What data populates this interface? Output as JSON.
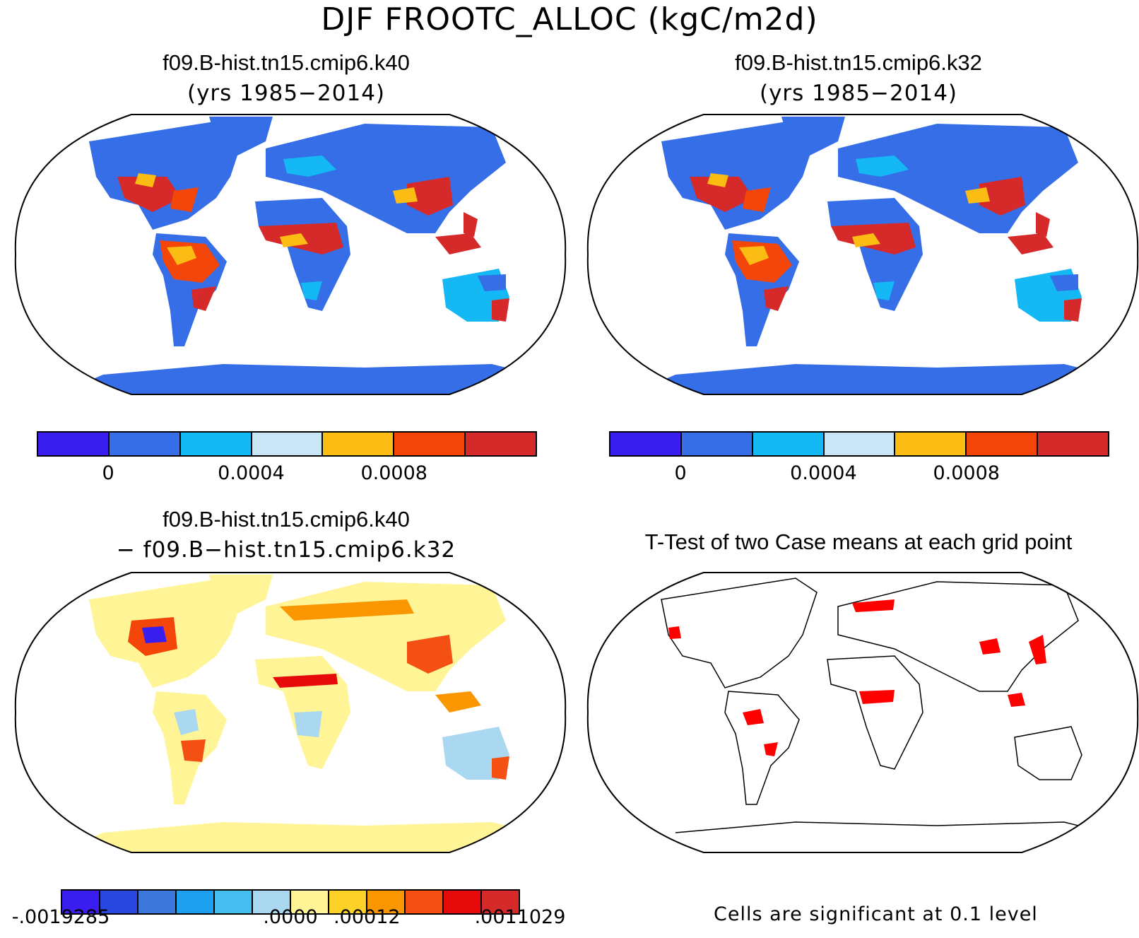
{
  "title": "DJF FROOTC_ALLOC (kgC/m2d)",
  "panels": {
    "top_left": {
      "case": "f09.B-hist.tn15.cmip6.k40",
      "years": "(yrs 1985−2014)"
    },
    "top_right": {
      "case": "f09.B-hist.tn15.cmip6.k32",
      "years": "(yrs 1985−2014)"
    },
    "bottom_left": {
      "case": "f09.B-hist.tn15.cmip6.k40",
      "minus": "− f09.B−hist.tn15.cmip6.k32"
    },
    "bottom_right": {
      "title": "T-Test of two Case means at each grid point",
      "note": "Cells are significant at 0.1 level"
    }
  },
  "colorbar_main": {
    "colors": [
      "#3a1ef0",
      "#356ee6",
      "#14b8f5",
      "#c8e6f5",
      "#fbbc14",
      "#f5460a",
      "#d62a2a"
    ],
    "labels": [
      "0",
      "0.0004",
      "0.0008"
    ],
    "label_positions_index": [
      1,
      3,
      5
    ]
  },
  "colorbar_diff": {
    "colors": [
      "#3a1ef0",
      "#2848e0",
      "#3c78dc",
      "#1ea0f0",
      "#46bef0",
      "#aad8f0",
      "#fff596",
      "#fcd228",
      "#fa9600",
      "#f55014",
      "#e60a0a",
      "#d62a2a"
    ],
    "labels": [
      "-.0019285",
      ".0000",
      ".00012",
      ".0011029"
    ],
    "label_positions_index": [
      0,
      6,
      8,
      12
    ]
  },
  "map_colors": {
    "land_base_main": "#356ee6",
    "land_base_diff": "#fff596",
    "significant": "#ff0000",
    "coast": "#000000"
  }
}
